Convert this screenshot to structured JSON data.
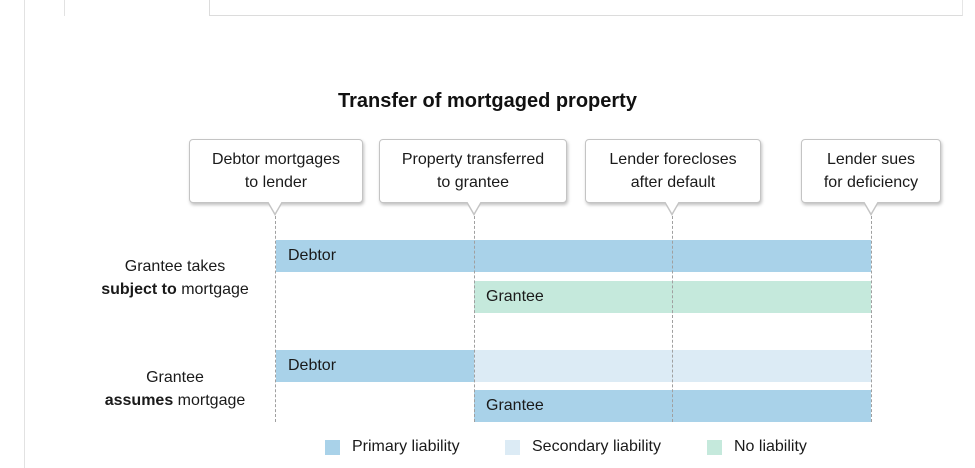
{
  "diagram": {
    "title": "Transfer of mortgaged property",
    "events": [
      {
        "label": "Debtor mortgages\nto lender"
      },
      {
        "label": "Property transferred\nto grantee"
      },
      {
        "label": "Lender forecloses\nafter default"
      },
      {
        "label": "Lender sues\nfor deficiency"
      }
    ],
    "scenarios": [
      {
        "label_plain": "Grantee takes",
        "label_bold": "subject to",
        "label_suffix": " mortgage",
        "debtor": {
          "label": "Debtor",
          "liability": [
            "primary",
            "primary",
            "primary"
          ]
        },
        "grantee": {
          "label": "Grantee",
          "liability": [
            "none",
            "none"
          ]
        }
      },
      {
        "label_plain": "Grantee",
        "label_bold": "assumes",
        "label_suffix": " mortgage",
        "debtor": {
          "label": "Debtor",
          "liability": [
            "primary",
            "secondary",
            "secondary"
          ]
        },
        "grantee": {
          "label": "Grantee",
          "liability": [
            "primary",
            "primary"
          ]
        }
      }
    ],
    "legend": [
      {
        "label": "Primary liability",
        "color": "#a9d2e9"
      },
      {
        "label": "Secondary liability",
        "color": "#dcebf5"
      },
      {
        "label": "No liability",
        "color": "#c5e9dc"
      }
    ]
  }
}
